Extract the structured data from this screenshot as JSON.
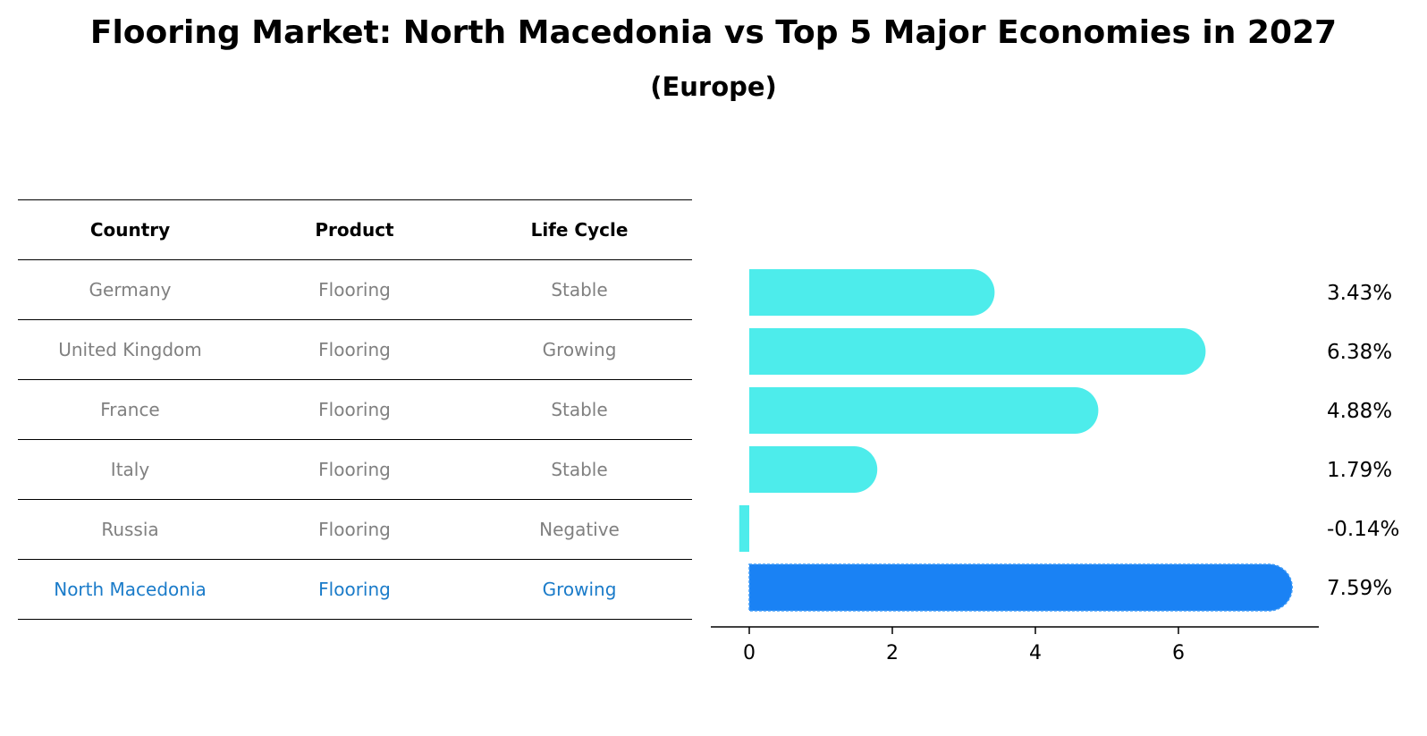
{
  "title": "Flooring Market: North Macedonia vs Top 5 Major Economies in 2027",
  "subtitle": "(Europe)",
  "table": {
    "headers": [
      "Country",
      "Product",
      "Life Cycle"
    ],
    "rows": [
      {
        "country": "Germany",
        "product": "Flooring",
        "life_cycle": "Stable"
      },
      {
        "country": "United Kingdom",
        "product": "Flooring",
        "life_cycle": "Growing"
      },
      {
        "country": "France",
        "product": "Flooring",
        "life_cycle": "Stable"
      },
      {
        "country": "Italy",
        "product": "Flooring",
        "life_cycle": "Stable"
      },
      {
        "country": "Russia",
        "product": "Flooring",
        "life_cycle": "Negative"
      },
      {
        "country": "North Macedonia",
        "product": "Flooring",
        "life_cycle": "Growing"
      }
    ]
  },
  "colors": {
    "bar": "#4deceb",
    "highlight_bar": "#1a82f4",
    "highlight_text": "#1a7bc9",
    "row_text": "#808080"
  },
  "chart_data": {
    "type": "bar",
    "orientation": "horizontal",
    "categories": [
      "Germany",
      "United Kingdom",
      "France",
      "Italy",
      "Russia",
      "North Macedonia"
    ],
    "values": [
      3.43,
      6.38,
      4.88,
      1.79,
      -0.14,
      7.59
    ],
    "value_labels": [
      "3.43%",
      "6.38%",
      "4.88%",
      "1.79%",
      "-0.14%",
      "7.59%"
    ],
    "highlight_index": 5,
    "xticks": [
      0,
      2,
      4,
      6
    ],
    "xlim": [
      -0.55,
      7.98
    ],
    "title": "",
    "xlabel": "",
    "ylabel": ""
  }
}
